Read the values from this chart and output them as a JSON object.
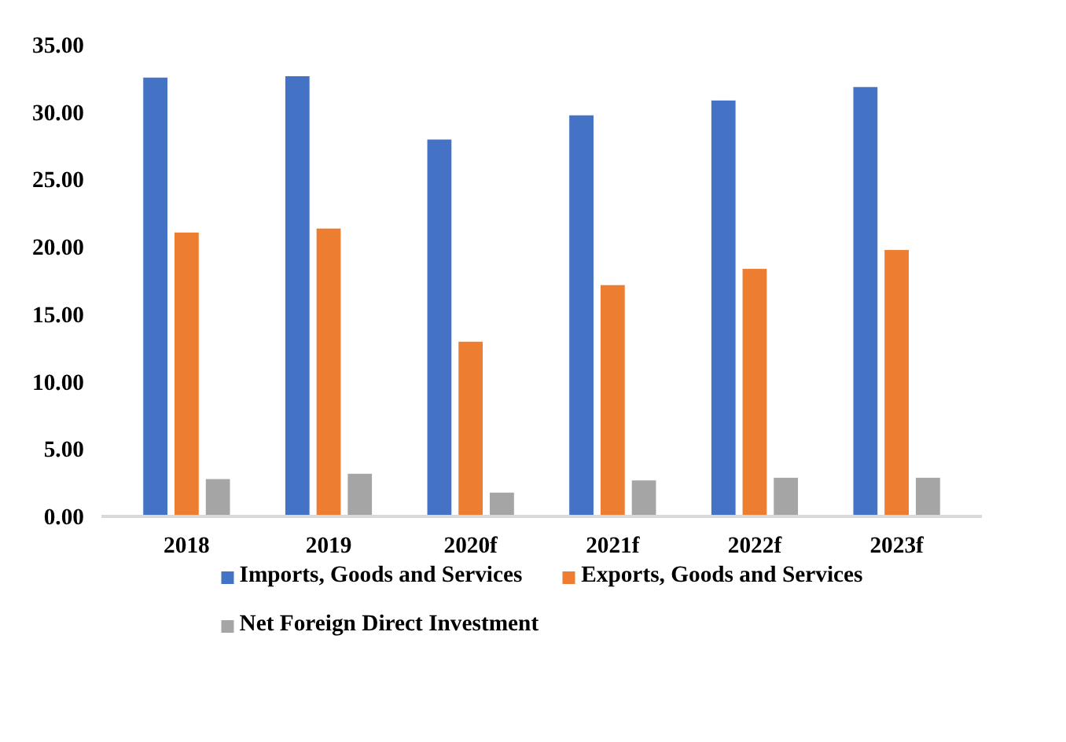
{
  "chart_data": {
    "type": "bar",
    "categories": [
      "2018",
      "2019",
      "2020f",
      "2021f",
      "2022f",
      "2023f"
    ],
    "series": [
      {
        "name": "Imports, Goods and Services",
        "color": "#4472c4",
        "values": [
          32.6,
          32.7,
          28.0,
          29.8,
          30.9,
          31.9
        ]
      },
      {
        "name": "Exports, Goods and Services",
        "color": "#ed7d31",
        "values": [
          21.1,
          21.4,
          13.0,
          17.2,
          18.4,
          19.8
        ]
      },
      {
        "name": "Net Foreign Direct Investment",
        "color": "#a5a5a5",
        "values": [
          2.8,
          3.2,
          1.8,
          2.7,
          2.9,
          2.9
        ]
      }
    ],
    "ylim": [
      0,
      35
    ],
    "yticks": [
      {
        "value": 0,
        "label": "0.00"
      },
      {
        "value": 5,
        "label": "5.00"
      },
      {
        "value": 10,
        "label": "10.00"
      },
      {
        "value": 15,
        "label": "15.00"
      },
      {
        "value": 20,
        "label": "20.00"
      },
      {
        "value": 25,
        "label": "25.00"
      },
      {
        "value": 30,
        "label": "30.00"
      },
      {
        "value": 35,
        "label": "35.00"
      }
    ],
    "legend": "bottom"
  }
}
